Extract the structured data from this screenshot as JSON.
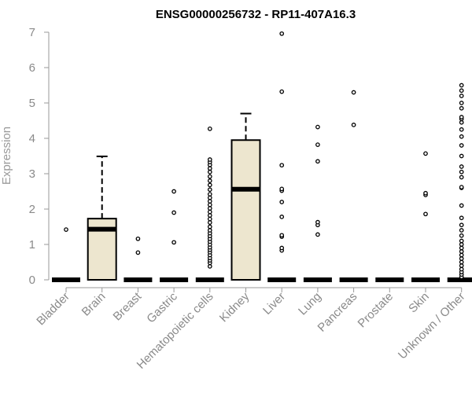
{
  "chart_data": {
    "type": "box",
    "title": "ENSG00000256732 - RP11-407A16.3",
    "ylabel": "Expression",
    "xlabel": "",
    "ylim": [
      0,
      7
    ],
    "yticks": [
      0,
      1,
      2,
      3,
      4,
      5,
      6,
      7
    ],
    "categories": [
      "Bladder",
      "Brain",
      "Breast",
      "Gastric",
      "Hematopoietic cells",
      "Kidney",
      "Liver",
      "Lung",
      "Pancreas",
      "Prostate",
      "Skin",
      "Unknown / Other"
    ],
    "box_fill": "#ede6cf",
    "boxes": [
      {
        "category": "Bladder",
        "min": 0,
        "q1": 0,
        "median": 0,
        "q3": 0,
        "max": 0,
        "outliers": [
          1.42
        ]
      },
      {
        "category": "Brain",
        "min": 0,
        "q1": 0,
        "median": 1.43,
        "q3": 1.73,
        "max": 3.49,
        "outliers": []
      },
      {
        "category": "Breast",
        "min": 0,
        "q1": 0,
        "median": 0,
        "q3": 0,
        "max": 0,
        "outliers": [
          0.77,
          1.16
        ]
      },
      {
        "category": "Gastric",
        "min": 0,
        "q1": 0,
        "median": 0,
        "q3": 0,
        "max": 0,
        "outliers": [
          1.06,
          1.9,
          2.5
        ]
      },
      {
        "category": "Hematopoietic cells",
        "min": 0,
        "q1": 0,
        "median": 0,
        "q3": 0,
        "max": 0,
        "outliers": [
          0.38,
          0.48,
          0.55,
          0.62,
          0.7,
          0.78,
          0.85,
          0.92,
          1.0,
          1.08,
          1.16,
          1.24,
          1.32,
          1.4,
          1.5,
          1.62,
          1.72,
          1.82,
          1.92,
          2.02,
          2.12,
          2.22,
          2.32,
          2.42,
          2.55,
          2.68,
          2.8,
          2.92,
          3.05,
          3.15,
          3.25,
          3.33,
          3.4,
          4.27
        ]
      },
      {
        "category": "Kidney",
        "min": 0,
        "q1": 0,
        "median": 2.56,
        "q3": 3.95,
        "max": 4.7,
        "outliers": []
      },
      {
        "category": "Liver",
        "min": 0,
        "q1": 0,
        "median": 0,
        "q3": 0,
        "max": 0,
        "outliers": [
          0.83,
          0.9,
          1.22,
          1.26,
          1.78,
          2.2,
          2.52,
          2.57,
          3.24,
          5.32,
          6.96
        ]
      },
      {
        "category": "Lung",
        "min": 0,
        "q1": 0,
        "median": 0,
        "q3": 0,
        "max": 0,
        "outliers": [
          1.28,
          1.55,
          1.63,
          3.35,
          3.82,
          4.32
        ]
      },
      {
        "category": "Pancreas",
        "min": 0,
        "q1": 0,
        "median": 0,
        "q3": 0,
        "max": 0,
        "outliers": [
          4.38,
          5.3
        ]
      },
      {
        "category": "Prostate",
        "min": 0,
        "q1": 0,
        "median": 0,
        "q3": 0,
        "max": 0,
        "outliers": []
      },
      {
        "category": "Skin",
        "min": 0,
        "q1": 0,
        "median": 0,
        "q3": 0,
        "max": 0,
        "outliers": [
          1.86,
          2.4,
          2.45,
          3.57
        ]
      },
      {
        "category": "Unknown / Other",
        "min": 0,
        "q1": 0,
        "median": 0,
        "q3": 0,
        "max": 0,
        "outliers": [
          0.08,
          0.15,
          0.22,
          0.3,
          0.4,
          0.5,
          0.6,
          0.7,
          0.8,
          0.9,
          1.0,
          1.1,
          1.25,
          1.4,
          1.55,
          1.75,
          2.1,
          2.6,
          2.62,
          2.9,
          3.05,
          3.2,
          3.5,
          3.8,
          4.05,
          4.25,
          4.45,
          4.55,
          4.6,
          4.85,
          5.0,
          5.2,
          5.35,
          5.5
        ]
      }
    ]
  }
}
